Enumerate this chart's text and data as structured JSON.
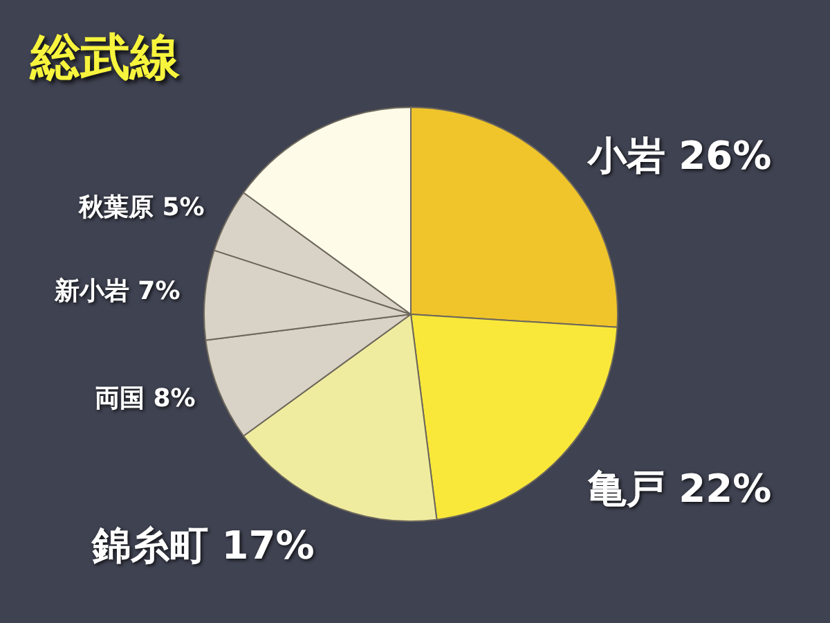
{
  "chart_data": {
    "type": "pie",
    "title": "総武線",
    "categories": [
      "小岩",
      "亀戸",
      "錦糸町",
      "両国",
      "新小岩",
      "秋葉原",
      null
    ],
    "values": [
      26,
      22,
      17,
      8,
      7,
      5,
      15
    ],
    "colors": [
      "#f0c52b",
      "#f9e839",
      "#f0ec9f",
      "#d8d2c7",
      "#d8d2c7",
      "#d8d2c7",
      "#fefbe9"
    ],
    "value_labels": [
      "26%",
      "22%",
      "17%",
      "8%",
      "7%",
      "5%",
      null
    ]
  }
}
